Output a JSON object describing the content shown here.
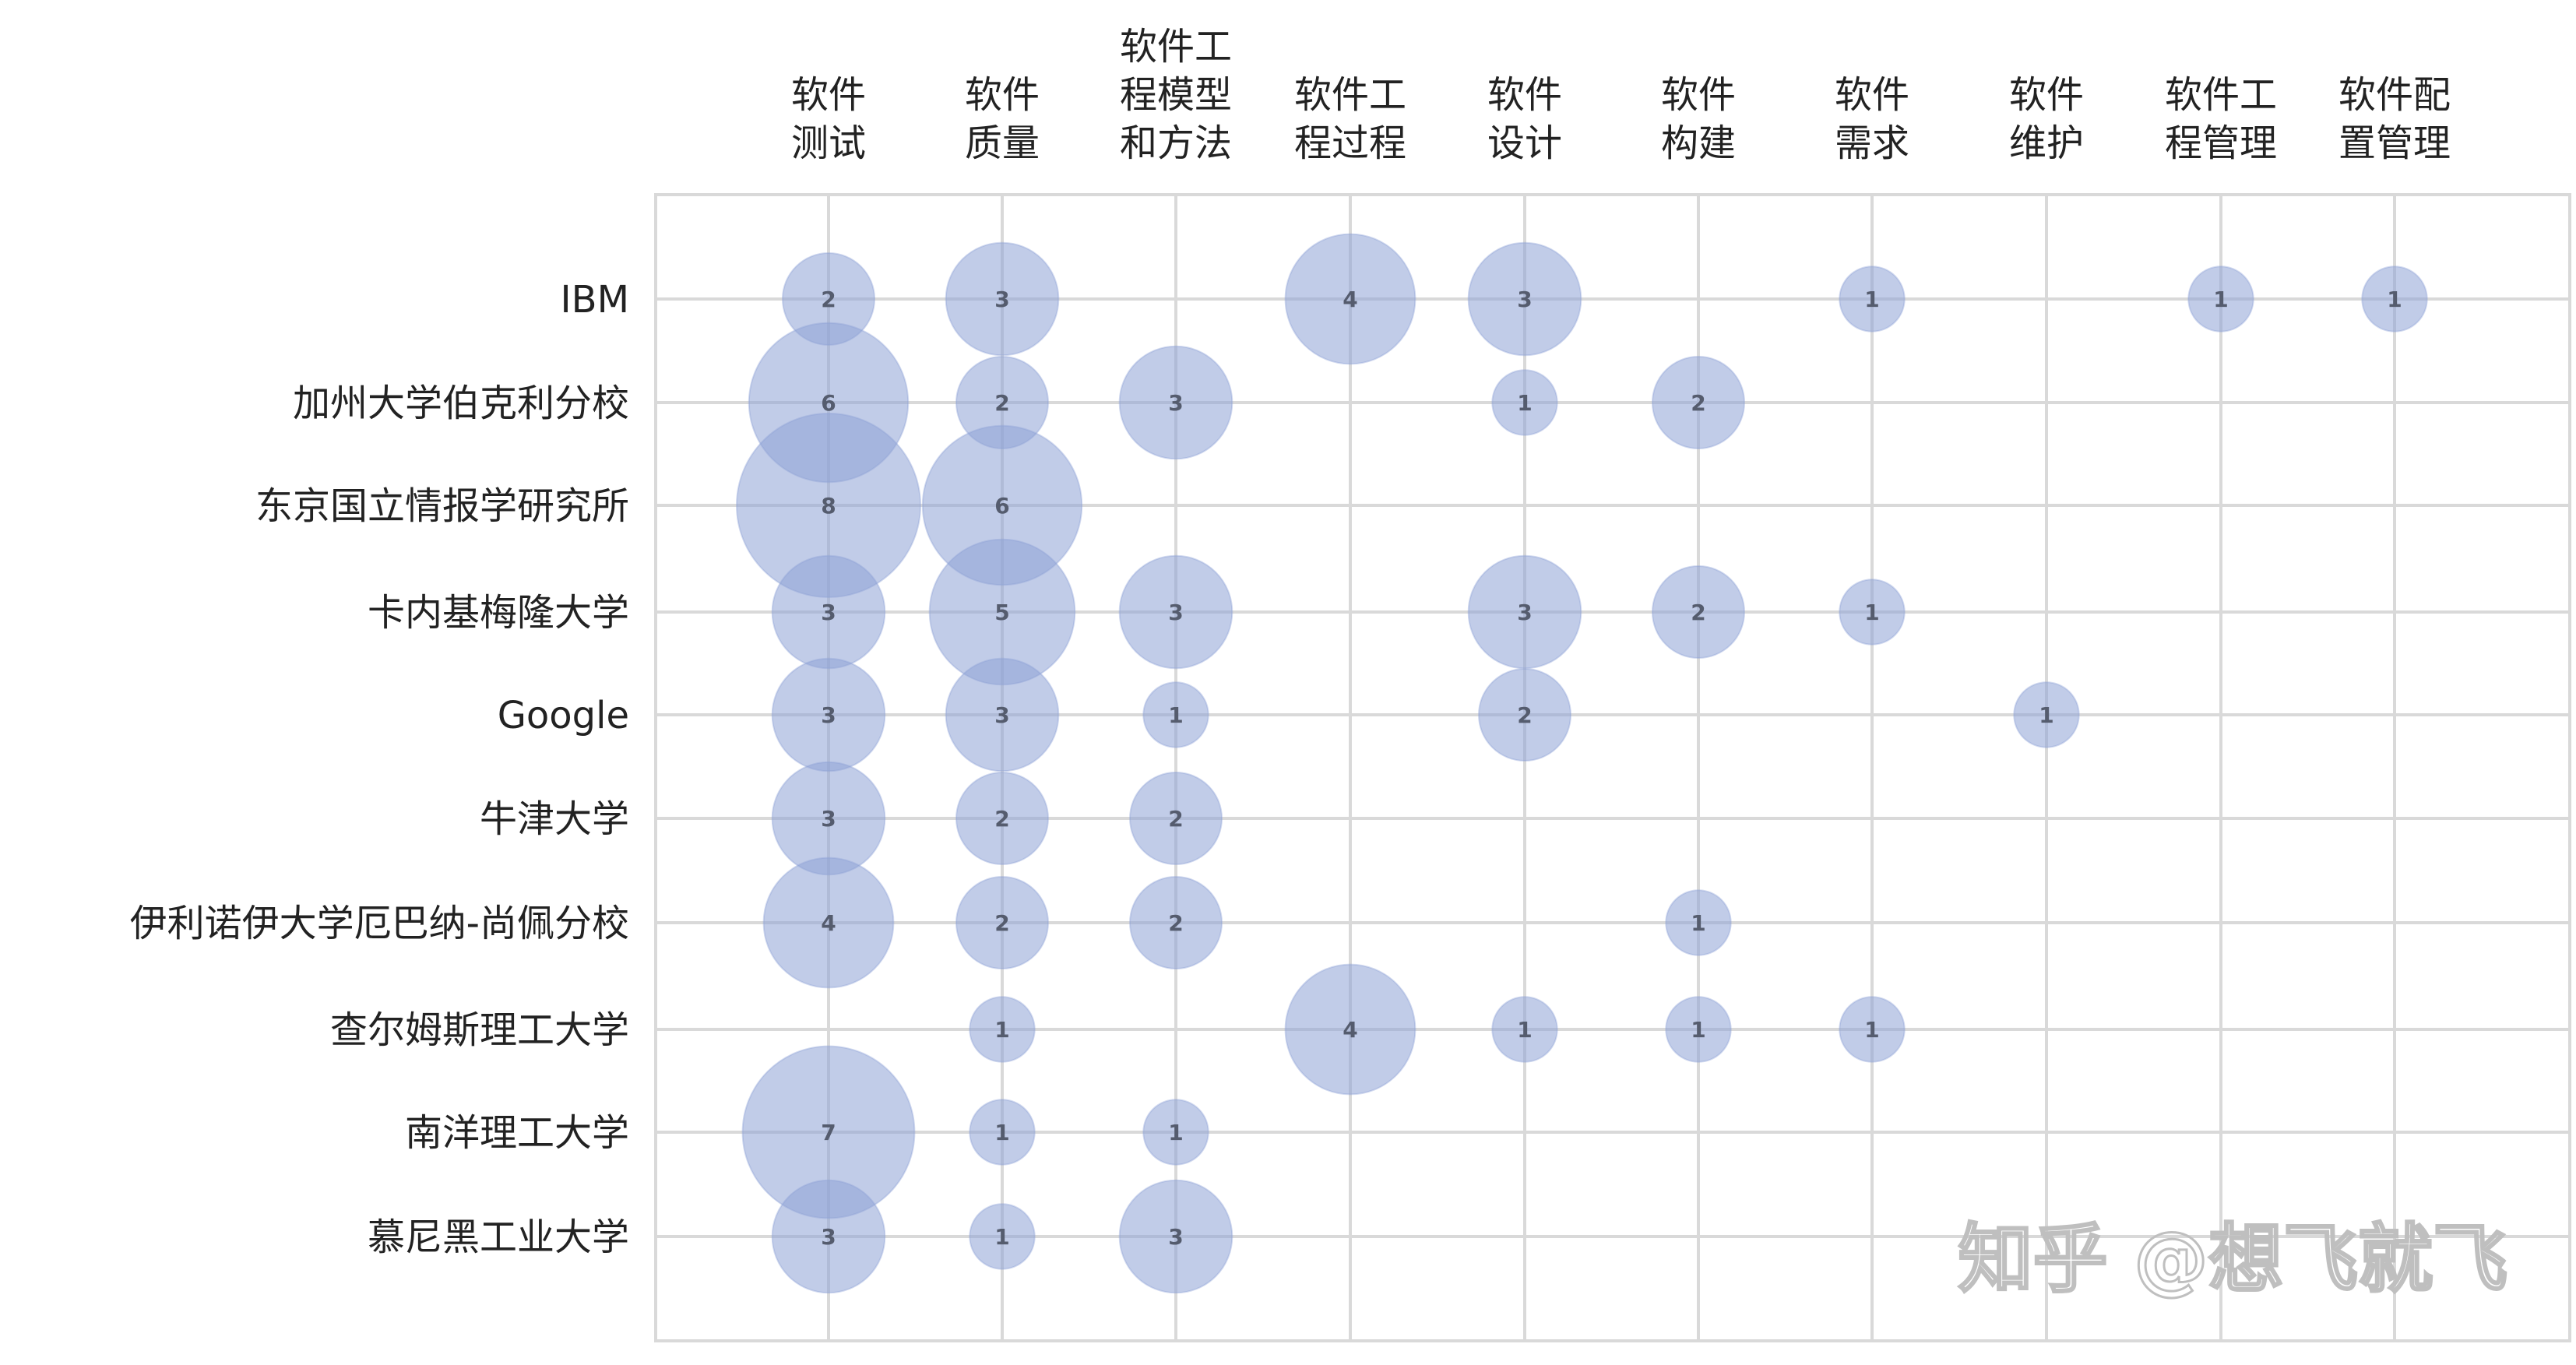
{
  "watermark": "知乎 @想飞就飞",
  "colors": {
    "bubble_fill": "#8ea2d6",
    "bubble_stroke": "#8ea2d6",
    "grid": "#d9d9d9",
    "frame": "#d9d9d9",
    "text": "#222222"
  },
  "chart_data": {
    "type": "bubble",
    "grid": true,
    "columns": [
      [
        "软件",
        "测试"
      ],
      [
        "软件",
        "质量"
      ],
      [
        "软件工",
        "程模型",
        "和方法"
      ],
      [
        "软件工",
        "程过程"
      ],
      [
        "软件",
        "设计"
      ],
      [
        "软件",
        "构建"
      ],
      [
        "软件",
        "需求"
      ],
      [
        "软件",
        "维护"
      ],
      [
        "软件工",
        "程管理"
      ],
      [
        "软件配",
        "置管理"
      ]
    ],
    "rows": [
      "IBM",
      "加州大学伯克利分校",
      "东京国立情报学研究所",
      "卡内基梅隆大学",
      "Google",
      "牛津大学",
      "伊利诺伊大学厄巴纳-尚佩分校",
      "查尔姆斯理工大学",
      "南洋理工大学",
      "慕尼黑工业大学"
    ],
    "values": [
      [
        2,
        3,
        0,
        4,
        3,
        0,
        1,
        0,
        1,
        1
      ],
      [
        6,
        2,
        3,
        0,
        1,
        2,
        0,
        0,
        0,
        0
      ],
      [
        8,
        6,
        0,
        0,
        0,
        0,
        0,
        0,
        0,
        0
      ],
      [
        3,
        5,
        3,
        0,
        3,
        2,
        1,
        0,
        0,
        0
      ],
      [
        3,
        3,
        1,
        0,
        2,
        0,
        0,
        1,
        0,
        0
      ],
      [
        3,
        2,
        2,
        0,
        0,
        0,
        0,
        0,
        0,
        0
      ],
      [
        4,
        2,
        2,
        0,
        0,
        1,
        0,
        0,
        0,
        0
      ],
      [
        0,
        1,
        0,
        4,
        1,
        1,
        1,
        0,
        0,
        0
      ],
      [
        7,
        1,
        1,
        0,
        0,
        0,
        0,
        0,
        0,
        0
      ],
      [
        3,
        1,
        3,
        0,
        0,
        0,
        0,
        0,
        0,
        0
      ]
    ]
  }
}
